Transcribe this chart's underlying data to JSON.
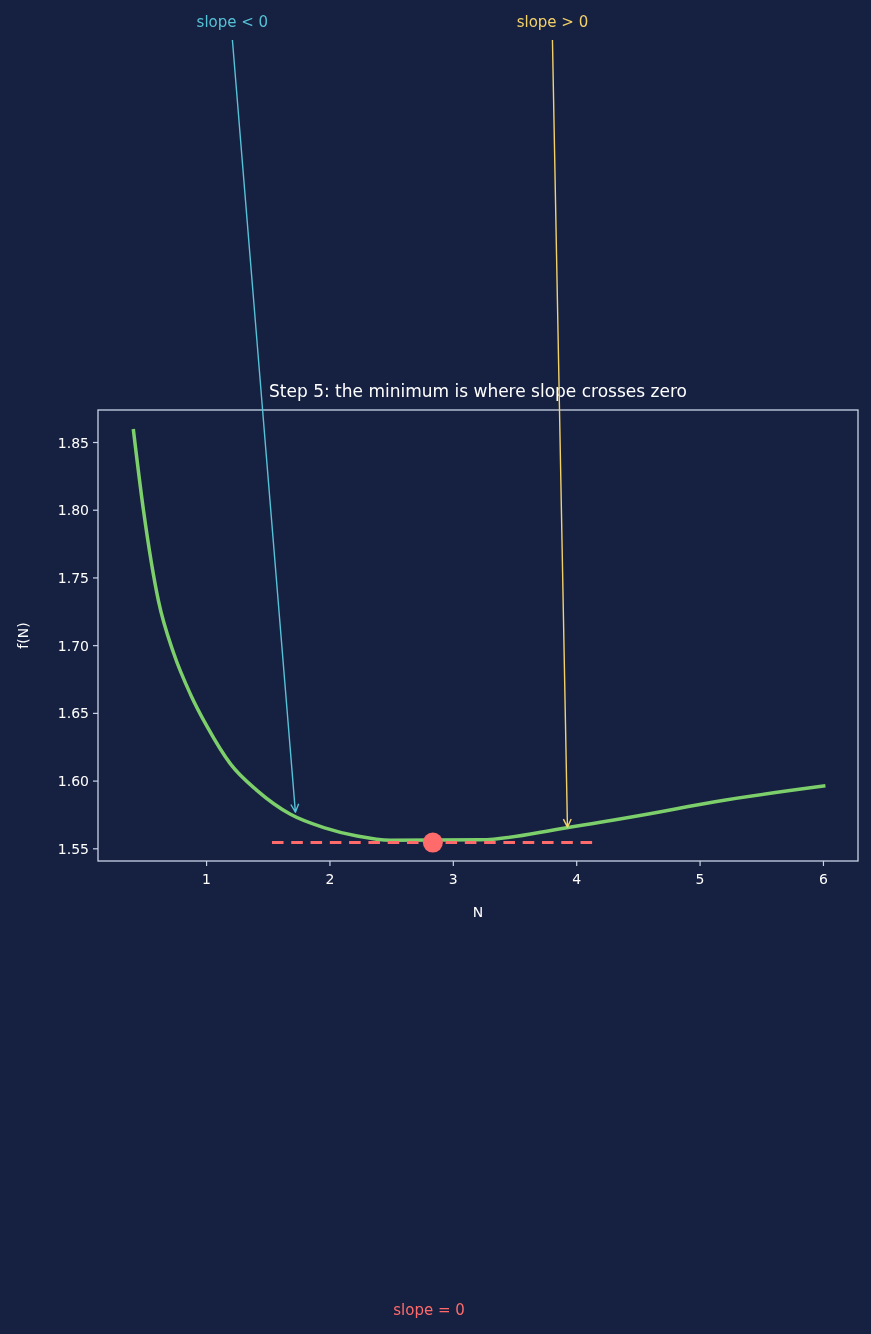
{
  "chart_data": {
    "type": "line",
    "title": "Step 5: the minimum is where slope crosses zero",
    "xlabel": "N",
    "ylabel": "f(N)",
    "xlim": [
      0.12,
      6.28
    ],
    "xticks": [
      1,
      2,
      3,
      4,
      5,
      6
    ],
    "ylim": [
      1.541,
      1.874
    ],
    "yticks": [
      1.55,
      {
        "value": 1.6,
        "label": "1.60"
      },
      1.65,
      {
        "value": 1.7,
        "label": "1.70"
      },
      1.75,
      {
        "value": 1.8,
        "label": "1.80"
      },
      1.85
    ],
    "grid": false,
    "series": [
      {
        "color": "#7ccf6b",
        "x": [
          0.406,
          0.49,
          0.61,
          0.735,
          0.87,
          1.006,
          1.195,
          1.41,
          1.68,
          1.95,
          2.22,
          2.49,
          3.22,
          3.895,
          4.57,
          5.11,
          6.016
        ],
        "values": [
          1.86,
          1.799,
          1.733,
          1.694,
          1.664,
          1.64,
          1.6125,
          1.593,
          1.5755,
          1.5657,
          1.5595,
          1.5564,
          1.5566,
          1.5652,
          1.5755,
          1.5846,
          1.5965
        ]
      },
      {
        "type": "line",
        "color": "#ff6b6b",
        "line_style": "dashed",
        "x": [
          1.53,
          4.125
        ],
        "values": [
          1.5546,
          1.5546
        ]
      },
      {
        "type": "scatter",
        "color": "#ff6b6b",
        "marker": "circle",
        "x": [
          2.834
        ],
        "values": [
          1.5546
        ]
      }
    ],
    "annotations": [
      {
        "text": "slope < 0",
        "x": 1.72,
        "y": 1.577
      },
      {
        "text": "slope > 0",
        "x": 3.925,
        "y": 1.566
      },
      "slope = 0"
    ]
  }
}
